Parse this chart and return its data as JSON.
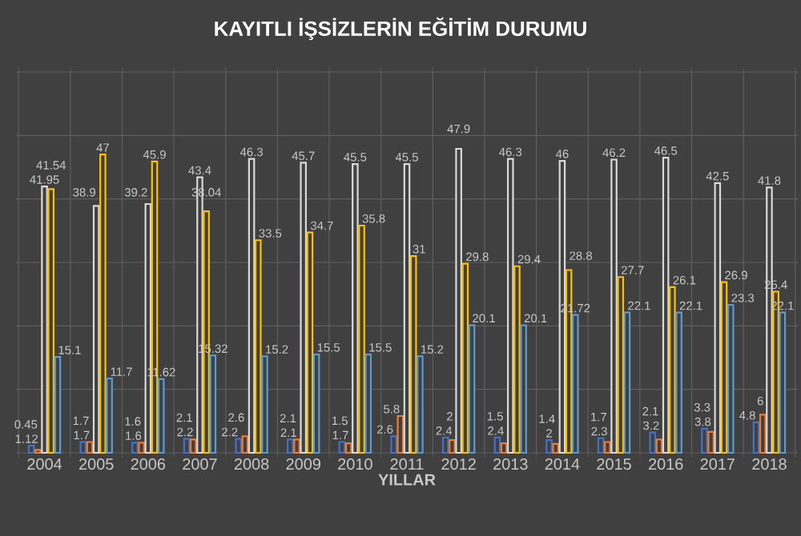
{
  "chart_data": {
    "type": "bar",
    "title": "KAYITLI İŞSİZLERİN EĞİTİM DURUMU",
    "xlabel": "YILLAR",
    "categories": [
      "2004",
      "2005",
      "2006",
      "2007",
      "2008",
      "2009",
      "2010",
      "2011",
      "2012",
      "2013",
      "2014",
      "2015",
      "2016",
      "2017",
      "2018"
    ],
    "series": [
      {
        "color": "#4472c4",
        "values": [
          1.12,
          1.7,
          1.6,
          2.2,
          2.2,
          2.1,
          1.7,
          2.6,
          2.4,
          2.4,
          2,
          2.3,
          3.2,
          3.8,
          4.8
        ]
      },
      {
        "color": "#ed7d31",
        "values": [
          0.45,
          1.7,
          1.6,
          2.1,
          2.6,
          2.1,
          1.5,
          5.8,
          2,
          1.5,
          1.4,
          1.7,
          2.1,
          3.3,
          6
        ]
      },
      {
        "color": "#d9d9d9",
        "values": [
          41.95,
          38.9,
          39.2,
          43.4,
          46.3,
          45.7,
          45.5,
          45.5,
          47.9,
          46.3,
          46,
          46.2,
          46.5,
          42.5,
          41.8
        ]
      },
      {
        "color": "#ffc000",
        "values": [
          41.54,
          47,
          45.9,
          38.04,
          33.5,
          34.7,
          35.8,
          31,
          29.8,
          29.4,
          28.8,
          27.7,
          26.1,
          26.9,
          25.4
        ]
      },
      {
        "color": "#5b9bd5",
        "values": [
          15.1,
          11.7,
          11.62,
          15.32,
          15.2,
          15.5,
          15.5,
          15.2,
          20.1,
          20.1,
          21.72,
          22.1,
          22.1,
          23.3,
          22.1
        ]
      }
    ],
    "ylim": [
      0,
      60
    ],
    "yticks": [
      {
        "value": 0,
        "label": null
      },
      {
        "value": 10,
        "label": null
      },
      {
        "value": 20,
        "label": null
      },
      {
        "value": 30,
        "label": null
      },
      {
        "value": 40,
        "label": null
      },
      {
        "value": 50,
        "label": null
      },
      {
        "value": 60,
        "label": null
      }
    ],
    "tick_labels": "x",
    "grid": true,
    "data_labels": true
  }
}
